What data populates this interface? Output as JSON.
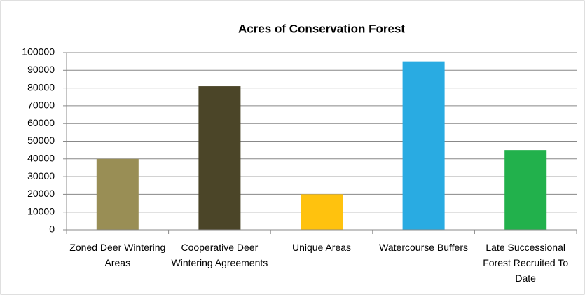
{
  "chart_data": {
    "type": "bar",
    "title": "Acres of Conservation Forest",
    "categories": [
      "Zoned Deer Wintering Areas",
      "Cooperative Deer Wintering Agreements",
      "Unique Areas",
      "Watercourse Buffers",
      "Late Successional Forest Recruited To Date"
    ],
    "values": [
      40000,
      81000,
      20000,
      95000,
      45000
    ],
    "colors": [
      "#998e55",
      "#4b4528",
      "#ffc20e",
      "#29abe2",
      "#22b14c"
    ],
    "ylim": [
      0,
      100000
    ],
    "yticks": [
      0,
      10000,
      20000,
      30000,
      40000,
      50000,
      60000,
      70000,
      80000,
      90000,
      100000
    ],
    "grid": true
  }
}
